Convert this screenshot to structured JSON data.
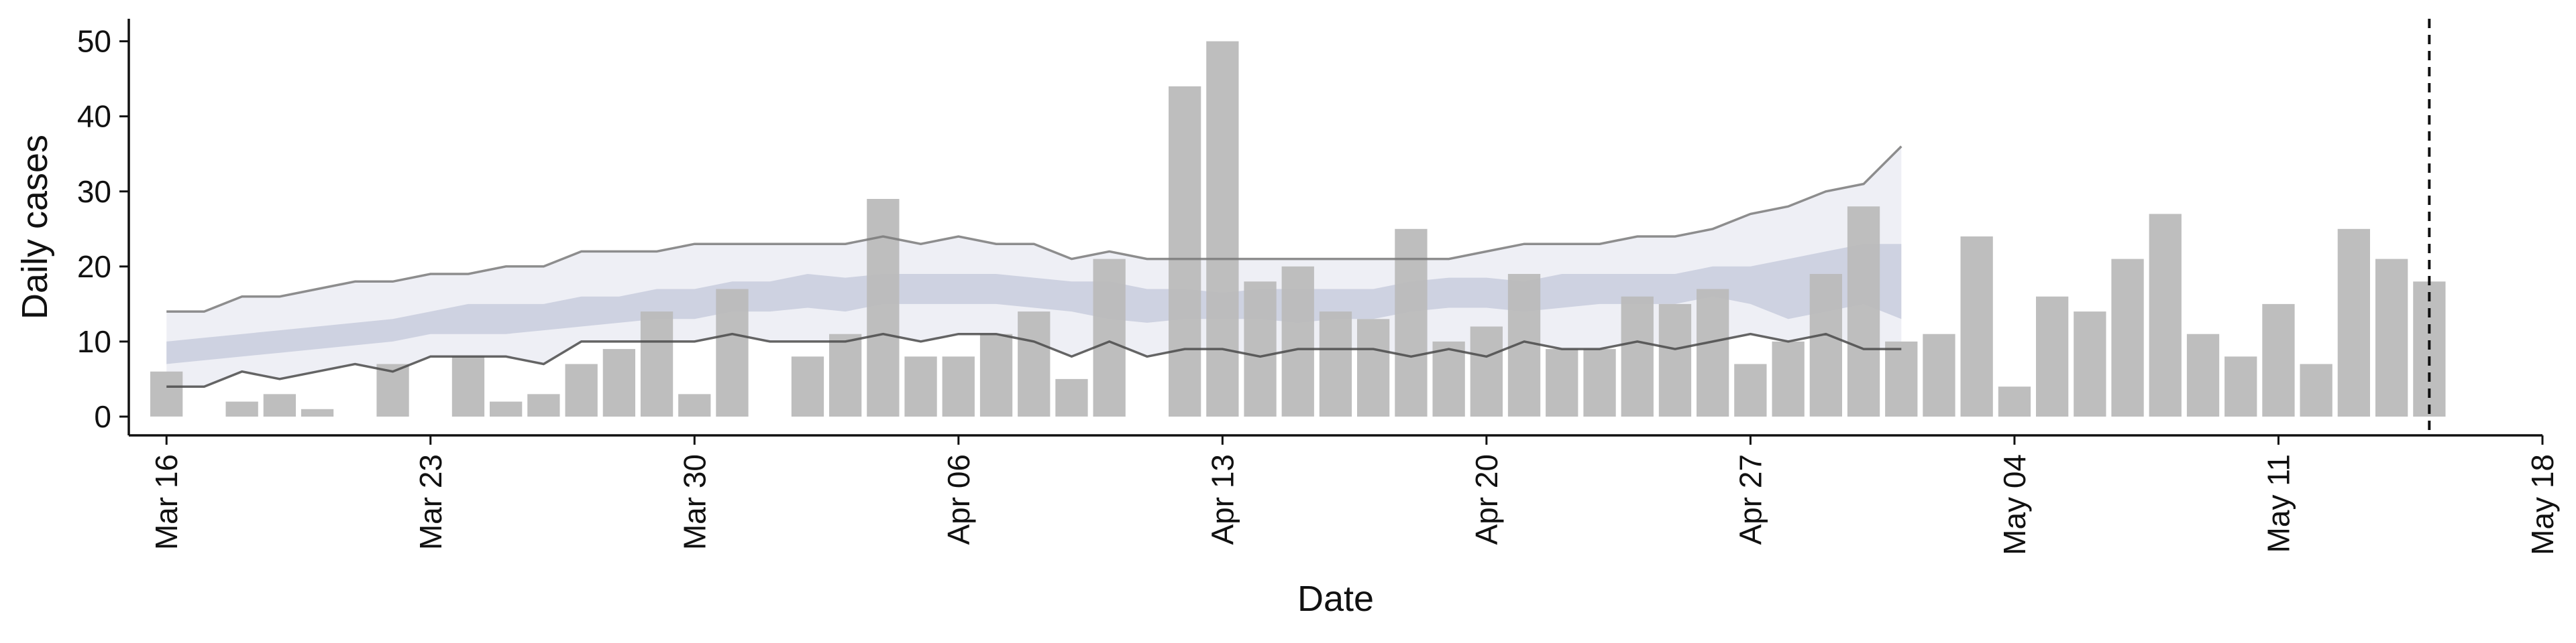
{
  "colors": {
    "bars": "#bbbbbb",
    "band_outer": "#e8eaf1",
    "band_inner": "#c5cbdc",
    "bound_upper_line": "#7a7a7a",
    "bound_lower_line": "#4a4a4a",
    "cutoff_line": "#111111",
    "axis": "#111111"
  },
  "chart_data": {
    "type": "bar",
    "xlabel": "Date",
    "ylabel": "Daily cases",
    "ylim": [
      -2.5,
      53
    ],
    "yticks": [
      0,
      10,
      20,
      30,
      40,
      50
    ],
    "x_tick_labels": [
      "Mar 16",
      "Mar 23",
      "Mar 30",
      "Apr 06",
      "Apr 13",
      "Apr 20",
      "Apr 27",
      "May 04",
      "May 11",
      "May 18"
    ],
    "xlim_dates": [
      "2020-03-15",
      "2020-05-18"
    ],
    "grid": false,
    "legend": "none",
    "cutoff_date": "2020-05-15",
    "daily_cases": {
      "dates": [
        "2020-03-16",
        "2020-03-17",
        "2020-03-18",
        "2020-03-19",
        "2020-03-20",
        "2020-03-21",
        "2020-03-22",
        "2020-03-23",
        "2020-03-24",
        "2020-03-25",
        "2020-03-26",
        "2020-03-27",
        "2020-03-28",
        "2020-03-29",
        "2020-03-30",
        "2020-03-31",
        "2020-04-01",
        "2020-04-02",
        "2020-04-03",
        "2020-04-04",
        "2020-04-05",
        "2020-04-06",
        "2020-04-07",
        "2020-04-08",
        "2020-04-09",
        "2020-04-10",
        "2020-04-11",
        "2020-04-12",
        "2020-04-13",
        "2020-04-14",
        "2020-04-15",
        "2020-04-16",
        "2020-04-17",
        "2020-04-18",
        "2020-04-19",
        "2020-04-20",
        "2020-04-21",
        "2020-04-22",
        "2020-04-23",
        "2020-04-24",
        "2020-04-25",
        "2020-04-26",
        "2020-04-27",
        "2020-04-28",
        "2020-04-29",
        "2020-04-30",
        "2020-05-01",
        "2020-05-02",
        "2020-05-03",
        "2020-05-04",
        "2020-05-05",
        "2020-05-06",
        "2020-05-07",
        "2020-05-08",
        "2020-05-09",
        "2020-05-10",
        "2020-05-11",
        "2020-05-12",
        "2020-05-13",
        "2020-05-14",
        "2020-05-15"
      ],
      "values": [
        6,
        0,
        2,
        3,
        1,
        0,
        7,
        0,
        8,
        2,
        3,
        7,
        9,
        14,
        3,
        17,
        0,
        8,
        11,
        29,
        8,
        8,
        11,
        14,
        5,
        21,
        0,
        44,
        50,
        18,
        20,
        14,
        13,
        25,
        10,
        12,
        19,
        9,
        9,
        16,
        15,
        17,
        7,
        10,
        19,
        28,
        10,
        11,
        24,
        4,
        16,
        14,
        21,
        27,
        11,
        8,
        15,
        7,
        25,
        21,
        18
      ]
    },
    "nowcast": {
      "dates": [
        "2020-03-16",
        "2020-03-17",
        "2020-03-18",
        "2020-03-19",
        "2020-03-20",
        "2020-03-21",
        "2020-03-22",
        "2020-03-23",
        "2020-03-24",
        "2020-03-25",
        "2020-03-26",
        "2020-03-27",
        "2020-03-28",
        "2020-03-29",
        "2020-03-30",
        "2020-03-31",
        "2020-04-01",
        "2020-04-02",
        "2020-04-03",
        "2020-04-04",
        "2020-04-05",
        "2020-04-06",
        "2020-04-07",
        "2020-04-08",
        "2020-04-09",
        "2020-04-10",
        "2020-04-11",
        "2020-04-12",
        "2020-04-13",
        "2020-04-14",
        "2020-04-15",
        "2020-04-16",
        "2020-04-17",
        "2020-04-18",
        "2020-04-19",
        "2020-04-20",
        "2020-04-21",
        "2020-04-22",
        "2020-04-23",
        "2020-04-24",
        "2020-04-25",
        "2020-04-26",
        "2020-04-27",
        "2020-04-28",
        "2020-04-29",
        "2020-04-30",
        "2020-05-01"
      ],
      "outer_upper": [
        14,
        14,
        16,
        16,
        17,
        18,
        18,
        19,
        19,
        20,
        20,
        22,
        22,
        22,
        23,
        23,
        23,
        23,
        23,
        24,
        23,
        24,
        23,
        23,
        21,
        22,
        21,
        21,
        21,
        21,
        21,
        21,
        21,
        21,
        21,
        22,
        23,
        23,
        23,
        24,
        24,
        25,
        27,
        28,
        30,
        31,
        36
      ],
      "outer_lower": [
        4,
        4,
        6,
        5,
        6,
        7,
        6,
        8,
        8,
        8,
        7,
        10,
        10,
        10,
        10,
        11,
        10,
        10,
        10,
        11,
        10,
        11,
        11,
        10,
        8,
        10,
        8,
        9,
        9,
        8,
        9,
        9,
        9,
        8,
        9,
        8,
        10,
        9,
        9,
        10,
        9,
        10,
        11,
        10,
        11,
        9,
        9
      ],
      "inner_upper": [
        10,
        10.5,
        11,
        11.5,
        12,
        12.5,
        13,
        14,
        15,
        15,
        15,
        16,
        16,
        17,
        17,
        18,
        18,
        19,
        18.5,
        19,
        19,
        19,
        19,
        18.5,
        18,
        18,
        17,
        17,
        16.5,
        17,
        17,
        17,
        17,
        18,
        18.5,
        18.5,
        18,
        19,
        19,
        19,
        19,
        20,
        20,
        21,
        22,
        23,
        23
      ],
      "inner_lower": [
        7,
        7.5,
        8,
        8.5,
        9,
        9.5,
        10,
        11,
        11,
        11,
        11.5,
        12,
        12.5,
        13,
        13,
        14,
        14,
        14.5,
        14,
        15,
        15,
        15,
        15,
        14.5,
        14,
        13,
        12.5,
        13,
        13,
        13,
        12.5,
        13,
        13,
        14,
        14.5,
        14.5,
        14,
        14.5,
        15,
        15,
        15,
        16,
        15,
        13,
        14,
        15,
        13
      ]
    }
  }
}
